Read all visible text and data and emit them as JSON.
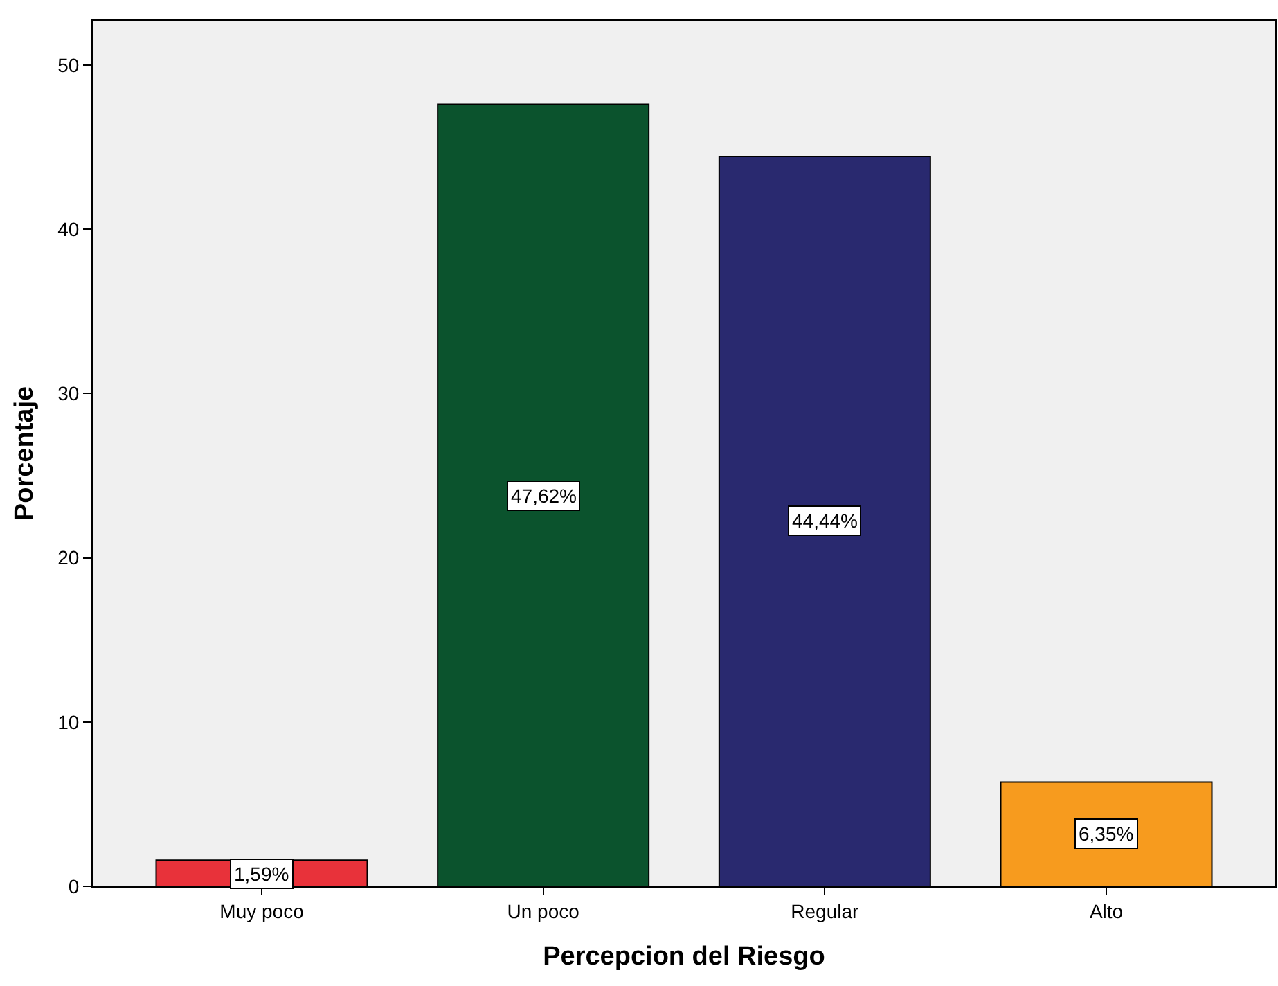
{
  "chart_data": {
    "type": "bar",
    "xlabel": "Percepcion del Riesgo",
    "ylabel": "Porcentaje",
    "categories": [
      "Muy poco",
      "Un poco",
      "Regular",
      "Alto"
    ],
    "values": [
      1.59,
      47.62,
      44.44,
      6.35
    ],
    "colors": [
      "#e8323a",
      "#0b532d",
      "#29296f",
      "#f79b1e"
    ],
    "value_labels": [
      "1,59%",
      "47,62%",
      "44,44%",
      "6,35%"
    ],
    "ylim": [
      0,
      52.7
    ],
    "yticks": [
      0,
      10,
      20,
      30,
      40,
      50
    ],
    "grid": false,
    "legend": false
  }
}
